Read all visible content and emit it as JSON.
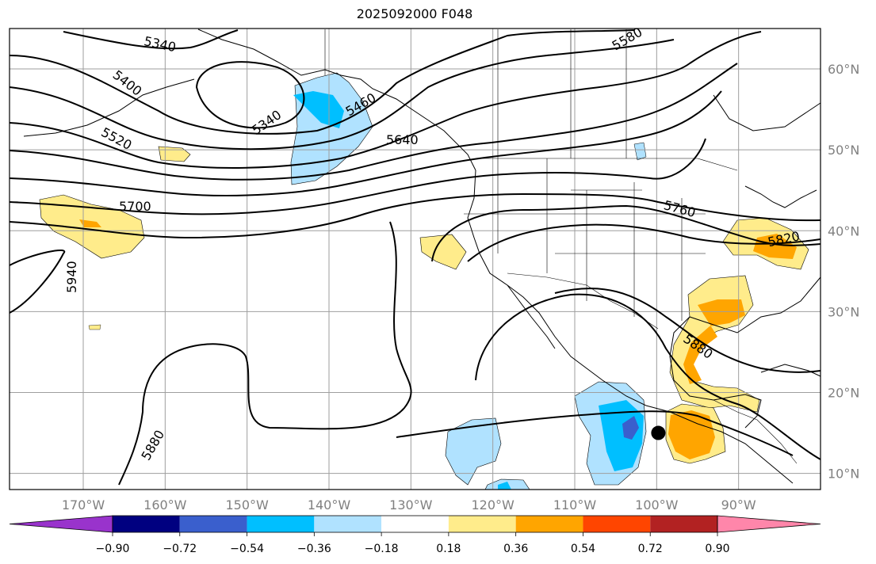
{
  "title": "2025092000 F048",
  "map": {
    "projection": "PlateCarree",
    "lon_range": [
      -179,
      -80
    ],
    "lat_range": [
      8,
      65
    ],
    "grid": true,
    "lat_ticks": [
      {
        "value": 60,
        "label": "60°N"
      },
      {
        "value": 50,
        "label": "50°N"
      },
      {
        "value": 40,
        "label": "40°N"
      },
      {
        "value": 30,
        "label": "30°N"
      },
      {
        "value": 20,
        "label": "20°N"
      },
      {
        "value": 10,
        "label": "10°N"
      }
    ],
    "lon_ticks": [
      {
        "value": -170,
        "label": "170°W"
      },
      {
        "value": -160,
        "label": "160°W"
      },
      {
        "value": -150,
        "label": "150°W"
      },
      {
        "value": -140,
        "label": "140°W"
      },
      {
        "value": -130,
        "label": "130°W"
      },
      {
        "value": -120,
        "label": "120°W"
      },
      {
        "value": -110,
        "label": "110°W"
      },
      {
        "value": -100,
        "label": "100°W"
      },
      {
        "value": -90,
        "label": "90°W"
      }
    ],
    "contour_labels": [
      "5340",
      "5400",
      "5520",
      "5700",
      "5940",
      "5880",
      "5340",
      "5460",
      "5640",
      "5580",
      "5760",
      "5820",
      "5880"
    ],
    "marker": {
      "lon": -99.8,
      "lat": 15.0,
      "color": "#000000"
    },
    "colors": {
      "grid": "#9e9e9e",
      "coast": "#000000",
      "contour": "#000000"
    }
  },
  "colorbar": {
    "ticks": [
      "−0.90",
      "−0.72",
      "−0.54",
      "−0.36",
      "−0.18",
      "0.18",
      "0.36",
      "0.54",
      "0.72",
      "0.90"
    ],
    "colors": [
      "#9933cc",
      "#000080",
      "#3a5fcd",
      "#00bfff",
      "#b0e2ff",
      "#ffffff",
      "#ffec8b",
      "#ffa500",
      "#ff4500",
      "#b22222",
      "#ff86aa"
    ]
  }
}
